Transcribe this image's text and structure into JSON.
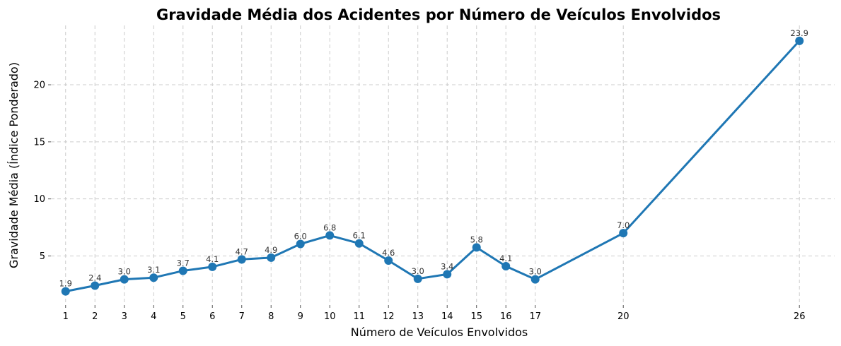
{
  "chart_data": {
    "type": "line",
    "title": "Gravidade Média dos Acidentes por Número de Veículos Envolvidos",
    "xlabel": "Número de Veículos Envolvidos",
    "ylabel": "Gravidade Média (Índice Ponderado)",
    "x": [
      1,
      2,
      3,
      4,
      5,
      6,
      7,
      8,
      9,
      10,
      11,
      12,
      13,
      14,
      15,
      16,
      17,
      20,
      26
    ],
    "series": [
      {
        "values": [
          1.9,
          2.4,
          2.95,
          3.1,
          3.7,
          4.05,
          4.7,
          4.85,
          6.05,
          6.8,
          6.1,
          4.6,
          3.0,
          3.4,
          5.75,
          4.1,
          2.95,
          7.0,
          23.85
        ],
        "labels": [
          "1.9",
          "2.4",
          "3.0",
          "3.1",
          "3.7",
          "4.1",
          "4.7",
          "4.9",
          "6.0",
          "6.8",
          "6.1",
          "4.6",
          "3.0",
          "3.4",
          "5.8",
          "4.1",
          "3.0",
          "7.0",
          "23.9"
        ]
      }
    ],
    "yticks": [
      5,
      10,
      15,
      20
    ],
    "xlim": [
      0.5,
      27.2
    ],
    "ylim": [
      0.7,
      25.2
    ],
    "grid": true,
    "colors": {
      "line": "#1f77b4",
      "marker": "#1f77b4",
      "grid": "#cccccc"
    }
  }
}
